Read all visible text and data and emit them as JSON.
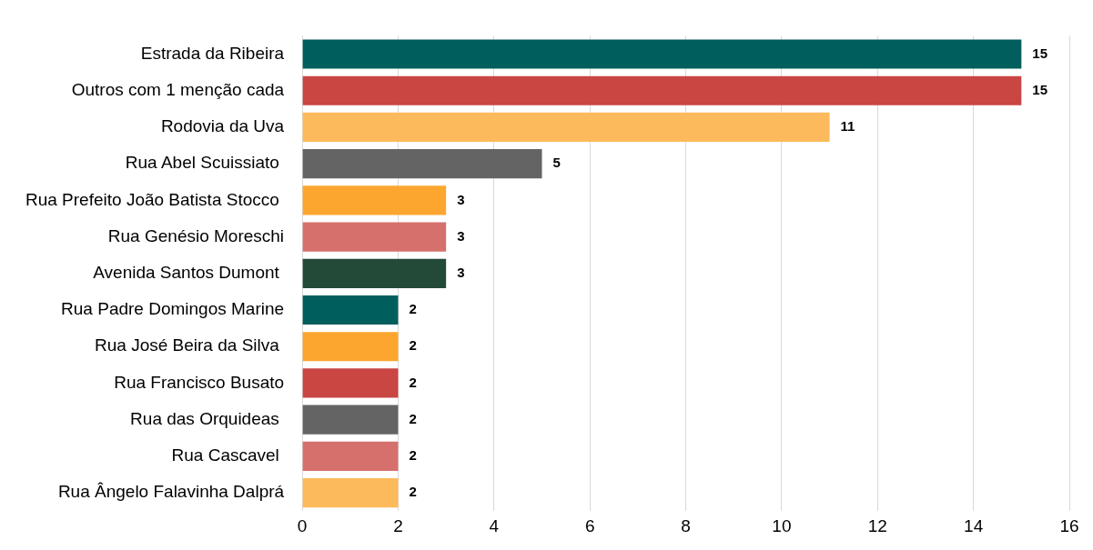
{
  "chart_data": {
    "type": "bar",
    "orientation": "horizontal",
    "categories": [
      "Estrada da Ribeira",
      "Outros com 1 menção cada",
      "Rodovia da Uva",
      "Rua Abel Scuissiato ",
      "Rua Prefeito João Batista Stocco ",
      "Rua Genésio Moreschi",
      "Avenida Santos Dumont ",
      "Rua Padre Domingos Marine",
      "Rua José Beira da Silva ",
      "Rua Francisco Busato",
      "Rua das Orquideas ",
      "Rua Cascavel ",
      "Rua Ângelo Falavinha Dalprá"
    ],
    "values": [
      15,
      15,
      11,
      5,
      3,
      3,
      3,
      2,
      2,
      2,
      2,
      2,
      2
    ],
    "colors": [
      "#005f5c",
      "#c94643",
      "#fdba5c",
      "#646464",
      "#fca62f",
      "#d6706d",
      "#234a39",
      "#005f5c",
      "#fca62f",
      "#c94643",
      "#646464",
      "#d6706d",
      "#fdba5c"
    ],
    "xlim": [
      0,
      16
    ],
    "xticks": [
      0,
      2,
      4,
      6,
      8,
      10,
      12,
      14,
      16
    ],
    "grid": "x",
    "data_labels": true,
    "legend": false
  }
}
